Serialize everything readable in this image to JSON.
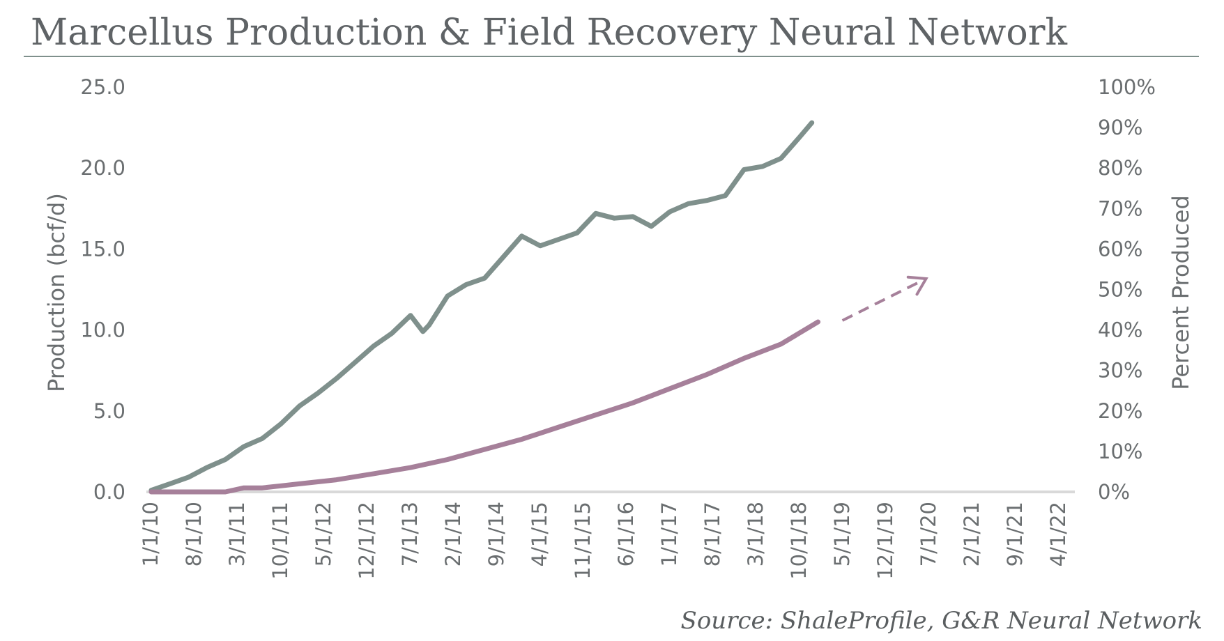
{
  "chart_data": {
    "type": "line",
    "title": "Marcellus Production & Field Recovery Neural Network",
    "source": "Source: ShaleProfile, G&R Neural Network",
    "ylabel": "Production (bcf/d)",
    "y2label": "Percent Produced",
    "ylim": [
      0,
      25
    ],
    "y2lim": [
      0,
      100
    ],
    "y_ticks": [
      "25.0",
      "20.0",
      "15.0",
      "10.0",
      "5.0",
      "0.0"
    ],
    "y2_ticks": [
      "100%",
      "90%",
      "80%",
      "70%",
      "60%",
      "50%",
      "40%",
      "30%",
      "20%",
      "10%",
      "0%"
    ],
    "x_ticks": [
      "1/1/10",
      "8/1/10",
      "3/1/11",
      "10/1/11",
      "5/1/12",
      "12/1/12",
      "7/1/13",
      "2/1/14",
      "9/1/14",
      "4/1/15",
      "11/1/15",
      "6/1/16",
      "1/1/17",
      "8/1/17",
      "3/1/18",
      "10/1/18",
      "5/1/19",
      "12/1/19",
      "7/1/20",
      "2/1/21",
      "9/1/21",
      "4/1/22"
    ],
    "grid": false,
    "colors": {
      "production": "#7f908c",
      "percent": "#a6809a",
      "axis": "#d9d9d9",
      "rule": "#7f908c"
    },
    "series": [
      {
        "axis": "left",
        "x": [
          "2010-01",
          "2010-04",
          "2010-07",
          "2010-10",
          "2011-01",
          "2011-04",
          "2011-07",
          "2011-10",
          "2012-01",
          "2012-04",
          "2012-07",
          "2012-10",
          "2013-01",
          "2013-04",
          "2013-07",
          "2013-09",
          "2013-10",
          "2014-01",
          "2014-04",
          "2014-07",
          "2014-10",
          "2015-01",
          "2015-04",
          "2015-07",
          "2015-10",
          "2016-01",
          "2016-04",
          "2016-07",
          "2016-10",
          "2017-01",
          "2017-04",
          "2017-07",
          "2017-10",
          "2018-01",
          "2018-04",
          "2018-07",
          "2018-10",
          "2018-12"
        ],
        "values": [
          0.1,
          0.5,
          0.9,
          1.5,
          2.0,
          2.8,
          3.3,
          4.2,
          5.3,
          6.1,
          7.0,
          8.0,
          9.0,
          9.8,
          10.9,
          9.9,
          10.3,
          12.1,
          12.8,
          13.2,
          14.5,
          15.8,
          15.2,
          15.6,
          16.0,
          17.2,
          16.9,
          17.0,
          16.4,
          17.3,
          17.8,
          18.0,
          18.3,
          19.9,
          20.1,
          20.6,
          21.9,
          22.8
        ]
      },
      {
        "axis": "right",
        "x": [
          "2010-01",
          "2010-07",
          "2011-01",
          "2011-04",
          "2011-07",
          "2011-10",
          "2012-01",
          "2012-07",
          "2013-01",
          "2013-07",
          "2014-01",
          "2014-07",
          "2015-01",
          "2015-07",
          "2016-01",
          "2016-07",
          "2017-01",
          "2017-07",
          "2018-01",
          "2018-07",
          "2019-01"
        ],
        "values": [
          0,
          0,
          0,
          1,
          1,
          1.5,
          2,
          3,
          4.5,
          6,
          8,
          10.5,
          13,
          16,
          19,
          22,
          25.5,
          29,
          33,
          36.5,
          42
        ]
      }
    ]
  }
}
